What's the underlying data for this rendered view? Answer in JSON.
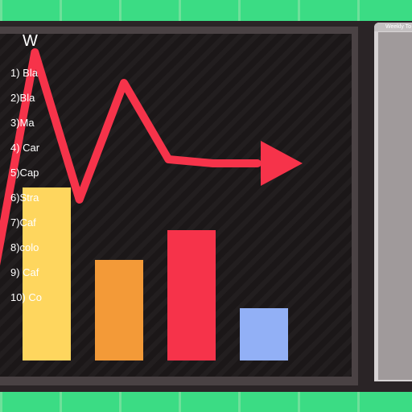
{
  "panel": {
    "tab_label": "Weekly To",
    "title": "W",
    "items": [
      "1) Bla",
      "2)Bla",
      "3)Ma",
      "4) Car",
      "5)Cap",
      "6)Stra",
      "7)Caf",
      "8)colo",
      "9) Caf",
      "10) Co"
    ]
  },
  "chart_data": {
    "type": "bar",
    "categories": [
      "",
      "",
      "",
      ""
    ],
    "values": [
      215,
      125,
      162,
      65
    ],
    "colors": [
      "#fed65e",
      "#f39a38",
      "#f6334a",
      "#92b0f6"
    ],
    "ylim": [
      0,
      400
    ],
    "trend_line": {
      "color": "#f6334a",
      "x": [
        0,
        1,
        2,
        3,
        4,
        5,
        6
      ],
      "y": [
        80,
        383,
        200,
        345,
        250,
        245,
        245
      ],
      "arrow_end": true
    }
  },
  "colors": {
    "tile_green": "#3bdc84",
    "grout_green": "#6fe09a",
    "wall": "#2a2426",
    "screen": "#1b1718",
    "panel": "#d8d4d5"
  }
}
